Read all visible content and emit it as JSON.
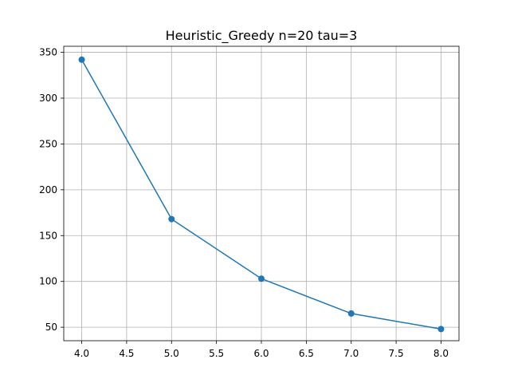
{
  "chart_data": {
    "type": "line",
    "title": "Heuristic_Greedy n=20 tau=3",
    "xlabel": "",
    "ylabel": "",
    "x": [
      4.0,
      5.0,
      6.0,
      7.0,
      8.0
    ],
    "series": [
      {
        "values": [
          342,
          168,
          103,
          65,
          48
        ],
        "color": "#1f77b4",
        "marker": "circle"
      }
    ],
    "xlim": [
      3.8,
      8.2
    ],
    "ylim": [
      35.3,
      356.6
    ],
    "xticks": [
      4.0,
      4.5,
      5.0,
      5.5,
      6.0,
      6.5,
      7.0,
      7.5,
      8.0
    ],
    "xtick_labels": [
      "4.0",
      "4.5",
      "5.0",
      "5.5",
      "6.0",
      "6.5",
      "7.0",
      "7.5",
      "8.0"
    ],
    "yticks": [
      50,
      100,
      150,
      200,
      250,
      300,
      350
    ],
    "ytick_labels": [
      "50",
      "100",
      "150",
      "200",
      "250",
      "300",
      "350"
    ],
    "grid": true,
    "legend": "none"
  }
}
